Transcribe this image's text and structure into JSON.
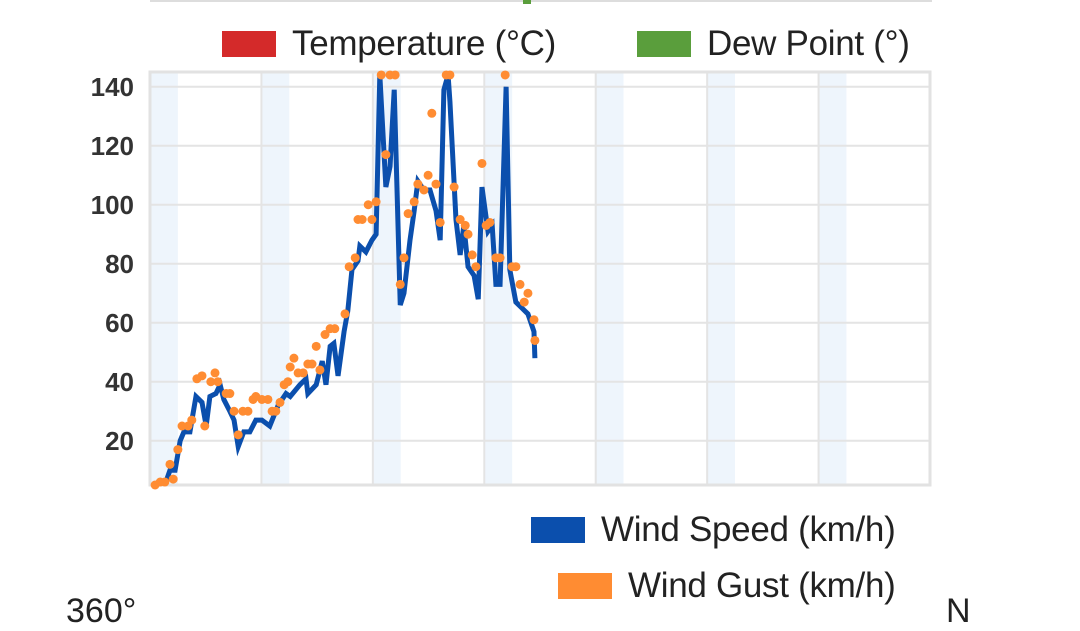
{
  "chart_data": {
    "type": "line",
    "title": "",
    "xlabel": "",
    "ylabel": "",
    "x_unit": "hours",
    "xlim": [
      0,
      168
    ],
    "ylim": [
      5,
      145
    ],
    "yticks": [
      20,
      40,
      60,
      80,
      100,
      120,
      140
    ],
    "ytick_labels": [
      "20",
      "40",
      "60",
      "80",
      "100",
      "120",
      "140"
    ],
    "x_major_gridlines_every": 24,
    "shaded_bands_every": 12,
    "grid": true,
    "legend_top": [
      {
        "name": "Temperature (°C)",
        "color": "#d42a2a"
      },
      {
        "name": "Dew Point (°)",
        "color": "#5a9e3c"
      }
    ],
    "series": [
      {
        "name": "Wind Speed (km/h)",
        "kind": "line",
        "color": "#0b4fad",
        "points": [
          [
            1.1,
            5
          ],
          [
            3.2,
            5
          ],
          [
            4.3,
            10
          ],
          [
            5.4,
            10
          ],
          [
            6.5,
            20
          ],
          [
            7.3,
            23
          ],
          [
            8.6,
            23
          ],
          [
            9.9,
            35
          ],
          [
            11.2,
            33
          ],
          [
            12.1,
            25
          ],
          [
            12.9,
            35
          ],
          [
            14.2,
            36
          ],
          [
            15.1,
            39
          ],
          [
            15.9,
            34
          ],
          [
            17.2,
            30
          ],
          [
            18.1,
            27
          ],
          [
            19.0,
            18
          ],
          [
            20.2,
            23
          ],
          [
            21.5,
            23
          ],
          [
            22.8,
            27
          ],
          [
            24.1,
            27
          ],
          [
            25.8,
            25
          ],
          [
            27.6,
            32
          ],
          [
            29.3,
            36
          ],
          [
            30.2,
            35
          ],
          [
            32.3,
            39
          ],
          [
            33.6,
            41
          ],
          [
            34.0,
            36
          ],
          [
            35.8,
            39
          ],
          [
            37.1,
            47
          ],
          [
            37.9,
            39
          ],
          [
            38.8,
            52
          ],
          [
            39.6,
            53
          ],
          [
            40.5,
            42
          ],
          [
            41.8,
            57
          ],
          [
            42.6,
            64
          ],
          [
            43.5,
            78
          ],
          [
            44.8,
            81
          ],
          [
            45.2,
            86
          ],
          [
            46.5,
            84
          ],
          [
            47.8,
            88
          ],
          [
            48.7,
            90
          ],
          [
            49.5,
            144
          ],
          [
            50.8,
            106
          ],
          [
            51.7,
            113
          ],
          [
            52.6,
            139
          ],
          [
            53.9,
            66
          ],
          [
            54.7,
            70
          ],
          [
            56.0,
            88
          ],
          [
            56.9,
            98
          ],
          [
            57.7,
            108
          ],
          [
            59.0,
            105
          ],
          [
            60.3,
            105
          ],
          [
            61.6,
            98
          ],
          [
            62.5,
            88
          ],
          [
            63.3,
            139
          ],
          [
            64.2,
            144
          ],
          [
            64.6,
            135
          ],
          [
            65.9,
            95
          ],
          [
            66.8,
            83
          ],
          [
            67.6,
            93
          ],
          [
            68.5,
            79
          ],
          [
            69.8,
            76
          ],
          [
            70.7,
            68
          ],
          [
            71.5,
            106
          ],
          [
            72.8,
            91
          ],
          [
            73.7,
            93
          ],
          [
            74.5,
            73
          ],
          [
            75.4,
            73
          ],
          [
            76.7,
            140
          ],
          [
            77.5,
            78
          ],
          [
            78.8,
            67
          ],
          [
            80.1,
            65
          ],
          [
            81.4,
            63
          ],
          [
            82.7,
            57
          ],
          [
            82.9,
            48
          ]
        ]
      },
      {
        "name": "Wind Gust (km/h)",
        "kind": "scatter",
        "color": "#ff8c32",
        "points": [
          [
            1.1,
            5
          ],
          [
            2.2,
            6
          ],
          [
            3.2,
            6
          ],
          [
            4.3,
            12
          ],
          [
            5.0,
            7
          ],
          [
            6.0,
            17
          ],
          [
            6.9,
            25
          ],
          [
            8.2,
            25
          ],
          [
            9.0,
            27
          ],
          [
            10.1,
            41
          ],
          [
            11.2,
            42
          ],
          [
            11.8,
            25
          ],
          [
            13.1,
            40
          ],
          [
            14.0,
            43
          ],
          [
            14.6,
            40
          ],
          [
            16.4,
            36
          ],
          [
            17.2,
            36
          ],
          [
            18.1,
            30
          ],
          [
            19.0,
            22
          ],
          [
            20.0,
            30
          ],
          [
            21.1,
            30
          ],
          [
            22.2,
            34
          ],
          [
            22.8,
            35
          ],
          [
            24.1,
            34
          ],
          [
            25.4,
            34
          ],
          [
            26.3,
            30
          ],
          [
            27.1,
            30
          ],
          [
            28.0,
            33
          ],
          [
            28.9,
            39
          ],
          [
            29.7,
            40
          ],
          [
            30.2,
            45
          ],
          [
            31.0,
            48
          ],
          [
            31.9,
            43
          ],
          [
            33.0,
            43
          ],
          [
            34.0,
            46
          ],
          [
            34.9,
            46
          ],
          [
            35.8,
            52
          ],
          [
            36.6,
            44
          ],
          [
            37.7,
            56
          ],
          [
            38.8,
            58
          ],
          [
            39.8,
            58
          ],
          [
            42.0,
            63
          ],
          [
            42.9,
            79
          ],
          [
            44.2,
            82
          ],
          [
            44.8,
            95
          ],
          [
            45.7,
            95
          ],
          [
            47.0,
            100
          ],
          [
            47.8,
            95
          ],
          [
            48.7,
            101
          ],
          [
            49.8,
            144
          ],
          [
            50.8,
            117
          ],
          [
            51.7,
            144
          ],
          [
            52.8,
            144
          ],
          [
            53.9,
            73
          ],
          [
            54.7,
            82
          ],
          [
            55.6,
            97
          ],
          [
            56.9,
            101
          ],
          [
            57.7,
            107
          ],
          [
            59.0,
            105
          ],
          [
            59.9,
            110
          ],
          [
            60.7,
            131
          ],
          [
            61.6,
            107
          ],
          [
            62.5,
            94
          ],
          [
            63.8,
            144
          ],
          [
            64.6,
            144
          ],
          [
            65.5,
            106
          ],
          [
            66.8,
            95
          ],
          [
            67.9,
            93
          ],
          [
            68.5,
            90
          ],
          [
            69.4,
            83
          ],
          [
            70.2,
            79
          ],
          [
            71.5,
            114
          ],
          [
            72.4,
            93
          ],
          [
            73.2,
            94
          ],
          [
            74.5,
            82
          ],
          [
            75.4,
            82
          ],
          [
            76.5,
            144
          ],
          [
            78.0,
            79
          ],
          [
            78.8,
            79
          ],
          [
            79.7,
            73
          ],
          [
            80.6,
            67
          ],
          [
            81.4,
            70
          ],
          [
            82.7,
            61
          ],
          [
            82.9,
            54
          ]
        ]
      }
    ]
  },
  "legend": {
    "temperature": "Temperature (°C)",
    "dew_point": "Dew Point (°)",
    "wind_speed": "Wind Speed (km/h)",
    "wind_gust": "Wind Gust (km/h)"
  },
  "next_chart": {
    "axis_label_left": "360°",
    "axis_label_right": "N"
  }
}
